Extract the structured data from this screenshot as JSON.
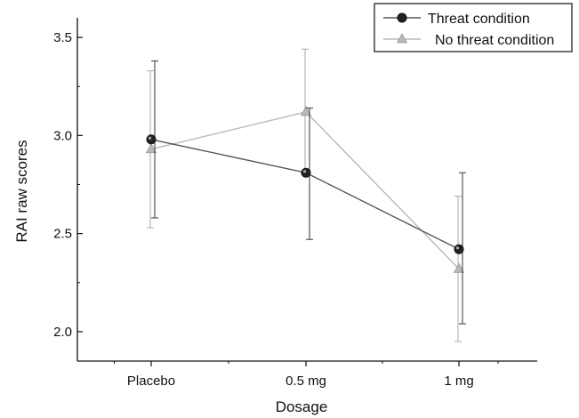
{
  "chart_data": {
    "type": "line",
    "title": "",
    "xlabel": "Dosage",
    "ylabel": "RAI raw scores",
    "categories": [
      "Placebo",
      "0.5 mg",
      "1 mg"
    ],
    "ylim": [
      1.85,
      3.6
    ],
    "yticks": [
      2.0,
      2.5,
      3.0,
      3.5
    ],
    "ytick_labels": [
      "2.0",
      "2.5",
      "3.0",
      "3.5"
    ],
    "grid": false,
    "legend_position": "top-right",
    "series": [
      {
        "name": "Threat condition",
        "marker": "circle",
        "color": "#555555",
        "values": [
          2.98,
          2.81,
          2.42
        ],
        "error_low": [
          2.58,
          2.47,
          2.04
        ],
        "error_high": [
          3.38,
          3.14,
          2.81
        ]
      },
      {
        "name": "No threat condition",
        "marker": "triangle",
        "color": "#b8b8b8",
        "values": [
          2.93,
          3.12,
          2.32
        ],
        "error_low": [
          2.53,
          2.81,
          1.95
        ],
        "error_high": [
          3.33,
          3.44,
          2.69
        ]
      }
    ]
  }
}
